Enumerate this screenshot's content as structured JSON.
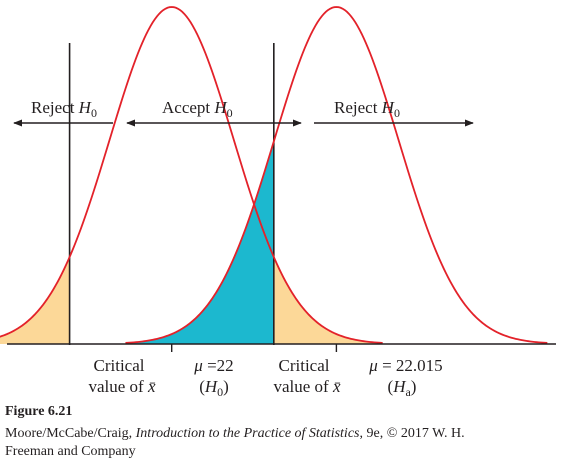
{
  "colors": {
    "curve": "#e3222a",
    "type_one_error": "#fcd898",
    "type_two_error": "#1cb8cf",
    "ink": "#231f20"
  },
  "regions": {
    "reject_left": {
      "text": "Reject ",
      "symbol": "H",
      "sub": "0"
    },
    "accept": {
      "text": "Accept ",
      "symbol": "H",
      "sub": "0"
    },
    "reject_right": {
      "text": "Reject ",
      "symbol": "H",
      "sub": "0"
    }
  },
  "axis_labels": {
    "critical_left": {
      "line1": "Critical",
      "line2_text": "value of ",
      "line2_symbol": "x̄"
    },
    "mu_null": {
      "symbol": "μ",
      "value": " =22",
      "hyp_symbol": "H",
      "hyp_sub": "0"
    },
    "critical_right": {
      "line1": "Critical",
      "line2_text": "value of ",
      "line2_symbol": "x̄"
    },
    "mu_alt": {
      "symbol": "μ",
      "value": " = 22.015",
      "hyp_symbol": "H",
      "hyp_sub": "a"
    }
  },
  "caption": {
    "figure_label": "Figure 6.21",
    "credit_authors": "Moore/McCabe/Craig, ",
    "credit_title": "Introduction to the Practice of Statistics",
    "credit_rest": ", 9e, © 2017 W. H.",
    "publisher": "Freeman and Company"
  },
  "chart_data": {
    "type": "area",
    "series": [
      {
        "mean": 22,
        "sd": 0.00565
      },
      {
        "mean": 22.015,
        "sd": 0.00565
      }
    ],
    "critical_values": [
      21.9907,
      22.0093
    ],
    "xlim": [
      21.985,
      22.035
    ]
  }
}
